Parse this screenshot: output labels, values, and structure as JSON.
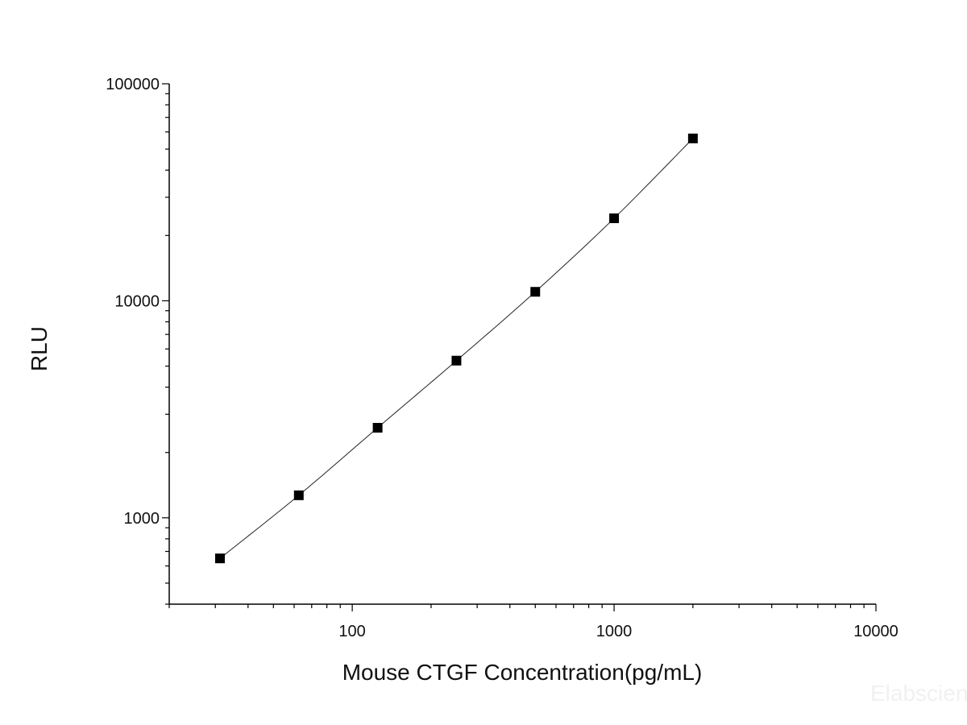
{
  "chart_data": {
    "type": "scatter",
    "title": "",
    "xlabel": "Mouse CTGF Concentration(pg/mL)",
    "ylabel": "RLU",
    "xscale": "log",
    "yscale": "log",
    "xlim": [
      20,
      10000
    ],
    "ylim": [
      400,
      100000
    ],
    "grid": false,
    "legend": "none",
    "x_ticks": [
      {
        "value": 100,
        "label": "100"
      },
      {
        "value": 1000,
        "label": "1000"
      },
      {
        "value": 10000,
        "label": "10000"
      }
    ],
    "y_ticks": [
      {
        "value": 1000,
        "label": "1000"
      },
      {
        "value": 10000,
        "label": "10000"
      },
      {
        "value": 100000,
        "label": "100000"
      }
    ],
    "series": [
      {
        "marker": "square",
        "line": "smooth-fit",
        "color": "#000000",
        "points": [
          {
            "x": 31.25,
            "y": 650
          },
          {
            "x": 62.5,
            "y": 1270
          },
          {
            "x": 125,
            "y": 2600
          },
          {
            "x": 250,
            "y": 5300
          },
          {
            "x": 500,
            "y": 11000
          },
          {
            "x": 1000,
            "y": 24000
          },
          {
            "x": 2000,
            "y": 56000
          }
        ]
      }
    ]
  },
  "watermark": "Elabscience"
}
